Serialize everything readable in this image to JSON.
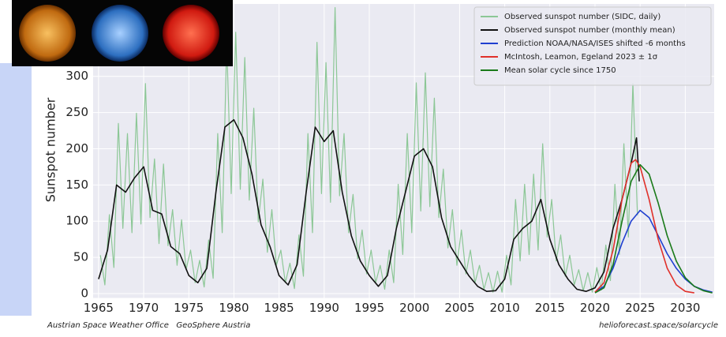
{
  "chart_data": {
    "type": "line",
    "y_label": "Sunspot number",
    "credits": {
      "left": "Austrian Space Weather Office   GeoSphere Austria",
      "right": "helioforecast.space/solarcycle"
    },
    "xlim": [
      1964.4,
      2033.2
    ],
    "ylim": [
      -6,
      400
    ],
    "xticks": [
      1965,
      1970,
      1975,
      1980,
      1985,
      1990,
      1995,
      2000,
      2005,
      2010,
      2015,
      2020,
      2025,
      2030
    ],
    "yticks": [
      0,
      50,
      100,
      150,
      200,
      250,
      300
    ],
    "grid": true,
    "legend": "upper right",
    "series": [
      {
        "name": "Observed sunspot number (SIDC, daily)",
        "color": "#8cc796",
        "width": 1.2,
        "x": [
          1965.2,
          1965.7,
          1966.2,
          1966.7,
          1967.2,
          1967.7,
          1968.2,
          1968.7,
          1969.2,
          1969.7,
          1970.2,
          1970.7,
          1971.2,
          1971.7,
          1972.2,
          1972.7,
          1973.2,
          1973.7,
          1974.2,
          1974.7,
          1975.2,
          1975.7,
          1976.2,
          1976.7,
          1977.2,
          1977.7,
          1978.2,
          1978.7,
          1979.2,
          1979.7,
          1980.2,
          1980.7,
          1981.2,
          1981.7,
          1982.2,
          1982.7,
          1983.2,
          1983.7,
          1984.2,
          1984.7,
          1985.2,
          1985.7,
          1986.2,
          1986.7,
          1987.2,
          1987.7,
          1988.2,
          1988.7,
          1989.2,
          1989.7,
          1990.2,
          1990.7,
          1991.2,
          1991.7,
          1992.2,
          1992.7,
          1993.2,
          1993.7,
          1994.2,
          1994.7,
          1995.2,
          1995.7,
          1996.2,
          1996.7,
          1997.2,
          1997.7,
          1998.2,
          1998.7,
          1999.2,
          1999.7,
          2000.2,
          2000.7,
          2001.2,
          2001.7,
          2002.2,
          2002.7,
          2003.2,
          2003.7,
          2004.2,
          2004.7,
          2005.2,
          2005.7,
          2006.2,
          2006.7,
          2007.2,
          2007.7,
          2008.2,
          2008.7,
          2009.2,
          2009.7,
          2010.2,
          2010.7,
          2011.2,
          2011.7,
          2012.2,
          2012.7,
          2013.2,
          2013.7,
          2014.2,
          2014.7,
          2015.2,
          2015.7,
          2016.2,
          2016.7,
          2017.2,
          2017.7,
          2018.2,
          2018.7,
          2019.2,
          2019.7,
          2020.2,
          2020.7,
          2021.2,
          2021.7,
          2022.2,
          2022.7,
          2023.2,
          2023.7,
          2024.2,
          2024.7
        ],
        "values": [
          53,
          12,
          109,
          36,
          235,
          90,
          221,
          84,
          249,
          96,
          290,
          105,
          186,
          69,
          179,
          66,
          116,
          39,
          102,
          33,
          60,
          15,
          46,
          9,
          74,
          21,
          221,
          84,
          347,
          138,
          361,
          144,
          326,
          129,
          256,
          99,
          158,
          57,
          116,
          39,
          60,
          15,
          42,
          7,
          81,
          24,
          221,
          84,
          347,
          138,
          319,
          126,
          395,
          135,
          221,
          84,
          137,
          48,
          88,
          27,
          60,
          15,
          39,
          6,
          60,
          15,
          151,
          54,
          221,
          84,
          291,
          114,
          305,
          120,
          270,
          105,
          172,
          63,
          116,
          39,
          88,
          27,
          60,
          15,
          39,
          6,
          29,
          2,
          31,
          2,
          53,
          12,
          130,
          45,
          151,
          54,
          165,
          60,
          207,
          78,
          130,
          45,
          81,
          24,
          53,
          12,
          33,
          4,
          29,
          2,
          36,
          5,
          67,
          18,
          151,
          54,
          207,
          78,
          290,
          108
        ]
      },
      {
        "name": "Observed sunspot number (monthly mean)",
        "color": "#111111",
        "width": 1.6,
        "x": [
          1965,
          1966,
          1967,
          1968,
          1969,
          1970,
          1971,
          1972,
          1973,
          1974,
          1975,
          1976,
          1977,
          1978,
          1979,
          1980,
          1981,
          1982,
          1983,
          1984,
          1985,
          1986,
          1987,
          1988,
          1989,
          1990,
          1991,
          1992,
          1993,
          1994,
          1995,
          1996,
          1997,
          1998,
          1999,
          2000,
          2001,
          2002,
          2003,
          2004,
          2005,
          2006,
          2007,
          2008,
          2009,
          2010,
          2011,
          2012,
          2013,
          2014,
          2015,
          2016,
          2017,
          2018,
          2019,
          2020,
          2021,
          2022,
          2023,
          2024,
          2024.6,
          2024.9
        ],
        "values": [
          20,
          60,
          150,
          140,
          160,
          175,
          115,
          110,
          65,
          55,
          25,
          15,
          35,
          140,
          230,
          240,
          215,
          165,
          95,
          65,
          25,
          12,
          40,
          140,
          230,
          210,
          225,
          140,
          80,
          45,
          25,
          10,
          25,
          90,
          140,
          190,
          200,
          175,
          105,
          65,
          45,
          25,
          10,
          3,
          4,
          20,
          75,
          90,
          100,
          130,
          75,
          40,
          20,
          6,
          3,
          8,
          30,
          90,
          130,
          180,
          215,
          155
        ]
      },
      {
        "name": "Prediction NOAA/NASA/ISES shifted -6 months",
        "color": "#1f3fd0",
        "width": 1.6,
        "x": [
          2020,
          2021,
          2022,
          2023,
          2024,
          2025,
          2026,
          2027,
          2028,
          2029,
          2030,
          2031,
          2032,
          2033
        ],
        "values": [
          2,
          10,
          35,
          70,
          100,
          115,
          105,
          80,
          55,
          35,
          20,
          10,
          5,
          2
        ]
      },
      {
        "name": "McIntosh, Leamon, Egeland 2023 ± 1σ",
        "color": "#e0302a",
        "width": 1.6,
        "x": [
          2020,
          2021,
          2022,
          2023,
          2024,
          2024.5,
          2025,
          2026,
          2027,
          2028,
          2029,
          2030,
          2031
        ],
        "values": [
          2,
          15,
          60,
          130,
          180,
          185,
          175,
          130,
          75,
          35,
          12,
          3,
          1
        ]
      },
      {
        "name": "Mean solar cycle since 1750",
        "color": "#1a7a1a",
        "width": 1.6,
        "x": [
          2020,
          2021,
          2022,
          2023,
          2024,
          2025,
          2026,
          2027,
          2028,
          2029,
          2030,
          2031,
          2032,
          2033
        ],
        "values": [
          1,
          8,
          40,
          100,
          155,
          178,
          165,
          125,
          80,
          45,
          22,
          10,
          4,
          1
        ]
      }
    ]
  }
}
